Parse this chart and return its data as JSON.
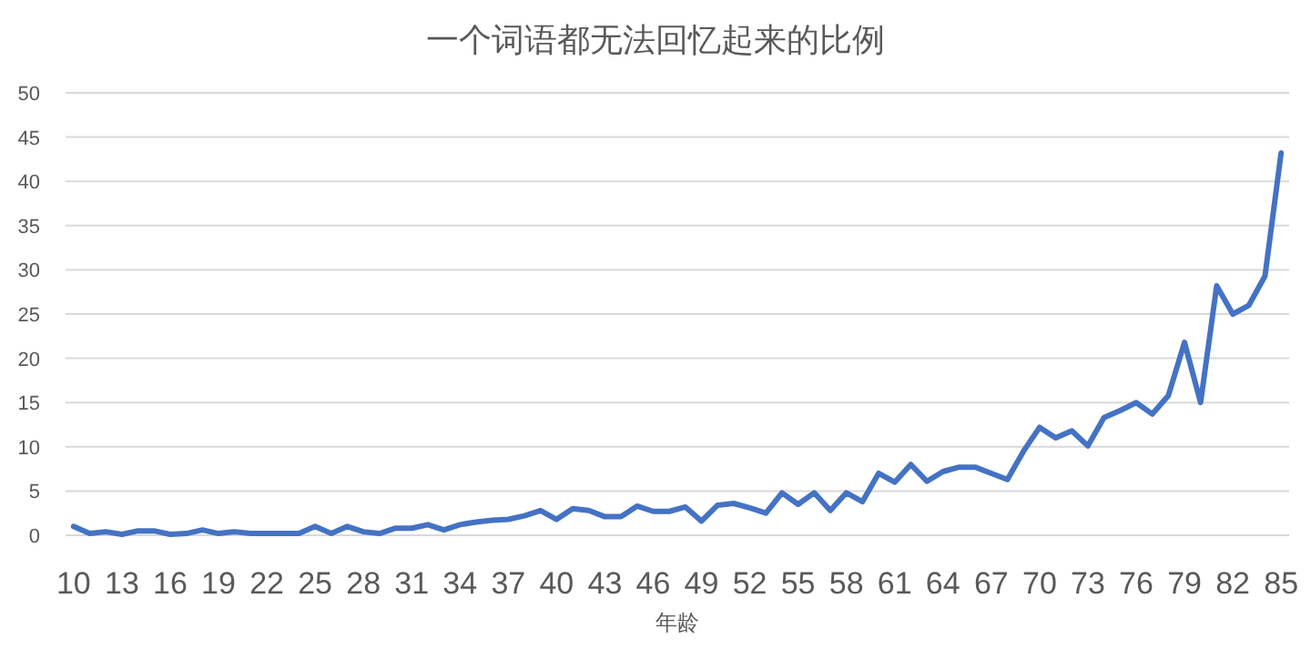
{
  "chart_data": {
    "type": "line",
    "title": "一个词语都无法回忆起来的比例",
    "xlabel": "年龄",
    "categories": [
      "10",
      null,
      null,
      "13",
      null,
      null,
      "16",
      null,
      null,
      "19",
      null,
      null,
      "22",
      null,
      null,
      "25",
      null,
      null,
      "28",
      null,
      null,
      "31",
      null,
      null,
      "34",
      null,
      null,
      "37",
      null,
      null,
      "40",
      null,
      null,
      "43",
      null,
      null,
      "46",
      null,
      null,
      "49",
      null,
      null,
      "52",
      null,
      null,
      "55",
      null,
      null,
      "58",
      null,
      null,
      "61",
      null,
      null,
      "64",
      null,
      null,
      "67",
      null,
      null,
      "70",
      null,
      null,
      "73",
      null,
      null,
      "76",
      null,
      null,
      "79",
      null,
      null,
      "82",
      null,
      null,
      "85"
    ],
    "series": [
      {
        "color": "#4472c4",
        "values": [
          1.0,
          0.2,
          0.4,
          0.1,
          0.5,
          0.5,
          0.1,
          0.2,
          0.6,
          0.2,
          0.4,
          0.2,
          0.2,
          0.2,
          0.2,
          1.0,
          0.2,
          1.0,
          0.4,
          0.2,
          0.8,
          0.8,
          1.2,
          0.6,
          1.2,
          1.5,
          1.7,
          1.8,
          2.2,
          2.8,
          1.8,
          3.0,
          2.8,
          2.1,
          2.1,
          3.3,
          2.7,
          2.7,
          3.2,
          1.6,
          3.4,
          3.6,
          3.1,
          2.5,
          4.8,
          3.5,
          4.8,
          2.8,
          4.8,
          3.8,
          7.0,
          6.0,
          8.0,
          6.1,
          7.2,
          7.7,
          7.7,
          7.0,
          6.3,
          9.5,
          12.2,
          11.0,
          11.8,
          10.1,
          13.3,
          14.1,
          15.0,
          13.7,
          15.8,
          21.8,
          15.0,
          28.2,
          25.0,
          26.0,
          29.3,
          43.2
        ]
      }
    ],
    "ylim": [
      0,
      50
    ],
    "yticks": [
      0,
      5,
      10,
      15,
      20,
      25,
      30,
      35,
      40,
      45,
      50
    ],
    "grid": "y"
  }
}
